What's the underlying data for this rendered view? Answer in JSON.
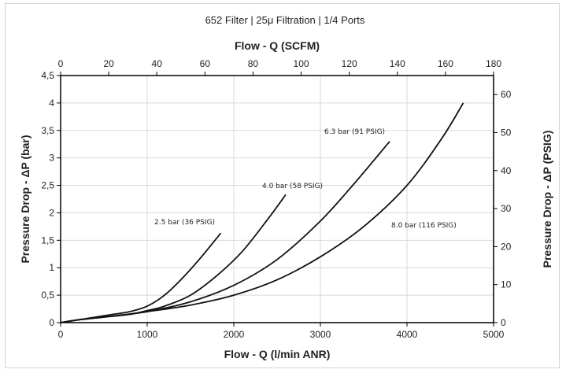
{
  "chart_data": {
    "type": "line",
    "title": "652 Filter | 25μ Filtration | 1/4 Ports",
    "xlabel": "Flow - Q (l/min ANR)",
    "ylabel": "Pressure Drop - ΔP (bar)",
    "x2label": "Flow - Q (SCFM)",
    "y2label": "Pressure Drop - ΔP (PSIG)",
    "xlim": [
      0,
      5000
    ],
    "ylim": [
      0,
      4.5
    ],
    "x2lim": [
      0,
      180
    ],
    "y2lim": [
      0,
      65
    ],
    "x_ticks": [
      0,
      1000,
      2000,
      3000,
      4000,
      5000
    ],
    "x_tick_labels": [
      "0",
      "1000",
      "2000",
      "3000",
      "4000",
      "5000"
    ],
    "y_ticks": [
      0,
      0.5,
      1,
      1.5,
      2,
      2.5,
      3,
      3.5,
      4,
      4.5
    ],
    "y_tick_labels": [
      "0",
      "0,5",
      "1",
      "1,5",
      "2",
      "2,5",
      "3",
      "3,5",
      "4",
      "4,5"
    ],
    "x2_ticks": [
      0,
      20,
      40,
      60,
      80,
      100,
      120,
      140,
      160,
      180
    ],
    "x2_tick_labels": [
      "0",
      "20",
      "40",
      "60",
      "80",
      "100",
      "120",
      "140",
      "160",
      "180"
    ],
    "y2_ticks": [
      0,
      10,
      20,
      30,
      40,
      50,
      60
    ],
    "y2_tick_labels": [
      "0",
      "10",
      "20",
      "30",
      "40",
      "50",
      "60"
    ],
    "grid": true,
    "series": [
      {
        "name": "2.5 bar (36 PSIG)",
        "x": [
          0,
          200,
          400,
          600,
          800,
          1000,
          1200,
          1400,
          1600,
          1850
        ],
        "y": [
          0,
          0.05,
          0.1,
          0.15,
          0.2,
          0.3,
          0.5,
          0.8,
          1.15,
          1.63
        ]
      },
      {
        "name": "4.0 bar (58 PSIG)",
        "x": [
          0,
          200,
          500,
          800,
          1000,
          1200,
          1500,
          1800,
          2100,
          2400,
          2600
        ],
        "y": [
          0,
          0.05,
          0.1,
          0.15,
          0.22,
          0.3,
          0.5,
          0.85,
          1.3,
          1.9,
          2.33
        ]
      },
      {
        "name": "6.3 bar (91 PSIG)",
        "x": [
          0,
          200,
          600,
          1000,
          1500,
          2000,
          2500,
          3000,
          3400,
          3800
        ],
        "y": [
          0,
          0.05,
          0.12,
          0.2,
          0.38,
          0.68,
          1.15,
          1.85,
          2.55,
          3.3
        ]
      },
      {
        "name": "8.0 bar (116 PSIG)",
        "x": [
          0,
          200,
          600,
          1000,
          1500,
          2000,
          2500,
          3000,
          3500,
          4000,
          4400,
          4650
        ],
        "y": [
          0,
          0.05,
          0.12,
          0.2,
          0.32,
          0.5,
          0.78,
          1.2,
          1.75,
          2.5,
          3.35,
          4.0
        ]
      }
    ]
  }
}
